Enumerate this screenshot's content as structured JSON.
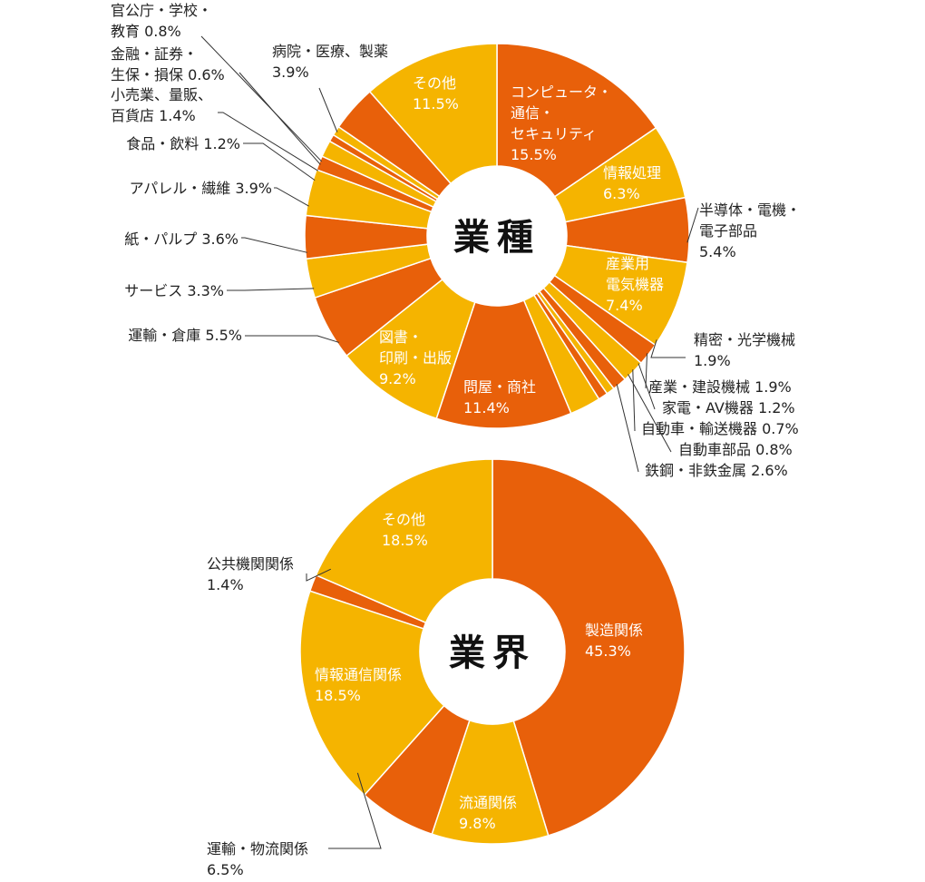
{
  "colors": {
    "orange": "#E8600A",
    "yellow": "#F5B400",
    "line": "#333333",
    "text": "#222222",
    "inner_text": "#ffffff"
  },
  "chart_data": [
    {
      "type": "pie",
      "title": "業種",
      "unit": "%",
      "slices": [
        {
          "name": "コンピュータ・通信・セキュリティ",
          "lines": [
            "コンピュータ・",
            "通信・",
            "セキュリティ",
            "15.5%"
          ],
          "value": 15.5,
          "color": "orange",
          "label": "inside"
        },
        {
          "name": "情報処理",
          "lines": [
            "情報処理",
            "6.3%"
          ],
          "value": 6.3,
          "color": "yellow",
          "label": "inside"
        },
        {
          "name": "半導体・電機・電子部品",
          "lines": [
            "半導体・電機・",
            "電子部品",
            "5.4%"
          ],
          "value": 5.4,
          "color": "orange",
          "label": "outside-right"
        },
        {
          "name": "産業用電気機器",
          "lines": [
            "産業用",
            "電気機器",
            "7.4%"
          ],
          "value": 7.4,
          "color": "yellow",
          "label": "inside"
        },
        {
          "name": "精密・光学機械",
          "lines": [
            "精密・光学機械",
            "1.9%"
          ],
          "value": 1.9,
          "color": "orange",
          "label": "leader"
        },
        {
          "name": "産業・建設機械",
          "lines": [
            "産業・建設機械  1.9%"
          ],
          "value": 1.9,
          "color": "yellow",
          "label": "leader"
        },
        {
          "name": "家電・AV機器",
          "lines": [
            "家電・AV機器  1.2%"
          ],
          "value": 1.2,
          "color": "orange",
          "label": "leader"
        },
        {
          "name": "自動車・輸送機器",
          "lines": [
            "自動車・輸送機器  0.7%"
          ],
          "value": 0.7,
          "color": "yellow",
          "label": "leader"
        },
        {
          "name": "自動車部品",
          "lines": [
            "自動車部品  0.8%"
          ],
          "value": 0.8,
          "color": "orange",
          "label": "leader"
        },
        {
          "name": "鉄鋼・非鉄金属",
          "lines": [
            "鉄鋼・非鉄金属  2.6%"
          ],
          "value": 2.6,
          "color": "yellow",
          "label": "leader"
        },
        {
          "name": "問屋・商社",
          "lines": [
            "問屋・商社",
            "11.4%"
          ],
          "value": 11.4,
          "color": "orange",
          "label": "inside"
        },
        {
          "name": "図書・印刷・出版",
          "lines": [
            "図書・",
            "印刷・出版",
            "9.2%"
          ],
          "value": 9.2,
          "color": "yellow",
          "label": "inside"
        },
        {
          "name": "運輸・倉庫",
          "lines": [
            "運輸・倉庫  5.5%"
          ],
          "value": 5.5,
          "color": "orange",
          "label": "leader"
        },
        {
          "name": "サービス",
          "lines": [
            "サービス  3.3%"
          ],
          "value": 3.3,
          "color": "yellow",
          "label": "leader"
        },
        {
          "name": "紙・パルプ",
          "lines": [
            "紙・パルプ  3.6%"
          ],
          "value": 3.6,
          "color": "orange",
          "label": "leader"
        },
        {
          "name": "アパレル・繊維",
          "lines": [
            "アパレル・繊維  3.9%"
          ],
          "value": 3.9,
          "color": "yellow",
          "label": "leader"
        },
        {
          "name": "食品・飲料",
          "lines": [
            "食品・飲料  1.2%"
          ],
          "value": 1.2,
          "color": "orange",
          "label": "leader"
        },
        {
          "name": "小売業、量販、百貨店",
          "lines": [
            "小売業、量販、",
            "百貨店  1.4%"
          ],
          "value": 1.4,
          "color": "yellow",
          "label": "leader"
        },
        {
          "name": "金融・証券・生保・損保",
          "lines": [
            "金融・証券・",
            "生保・損保  0.6%"
          ],
          "value": 0.6,
          "color": "orange",
          "label": "leader"
        },
        {
          "name": "官公庁・学校・教育",
          "lines": [
            "官公庁・学校・",
            "教育  0.8%"
          ],
          "value": 0.8,
          "color": "yellow",
          "label": "leader"
        },
        {
          "name": "病院・医療、製薬",
          "lines": [
            "病院・医療、製薬",
            "3.9%"
          ],
          "value": 3.9,
          "color": "orange",
          "label": "leader"
        },
        {
          "name": "その他",
          "lines": [
            "その他",
            "11.5%"
          ],
          "value": 11.5,
          "color": "yellow",
          "label": "inside"
        }
      ]
    },
    {
      "type": "pie",
      "title": "業界",
      "unit": "%",
      "slices": [
        {
          "name": "製造関係",
          "lines": [
            "製造関係",
            "45.3%"
          ],
          "value": 45.3,
          "color": "orange",
          "label": "inside"
        },
        {
          "name": "流通関係",
          "lines": [
            "流通関係",
            "9.8%"
          ],
          "value": 9.8,
          "color": "yellow",
          "label": "inside"
        },
        {
          "name": "運輸・物流関係",
          "lines": [
            "運輸・物流関係",
            "6.5%"
          ],
          "value": 6.5,
          "color": "orange",
          "label": "leader"
        },
        {
          "name": "情報通信関係",
          "lines": [
            "情報通信関係",
            "18.5%"
          ],
          "value": 18.5,
          "color": "yellow",
          "label": "inside"
        },
        {
          "name": "公共機関関係",
          "lines": [
            "公共機関関係",
            "1.4%"
          ],
          "value": 1.4,
          "color": "orange",
          "label": "leader"
        },
        {
          "name": "その他",
          "lines": [
            "その他",
            "18.5%"
          ],
          "value": 18.5,
          "color": "yellow",
          "label": "inside"
        }
      ]
    }
  ]
}
